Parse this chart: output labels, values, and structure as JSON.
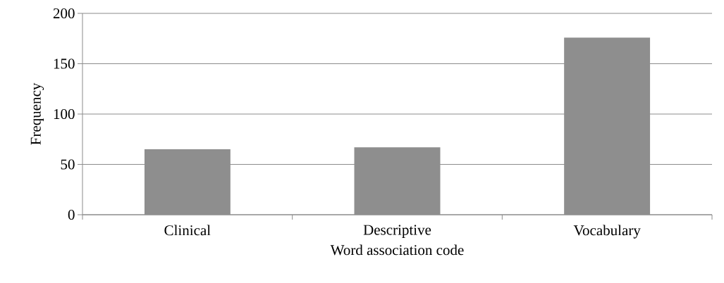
{
  "chart_data": {
    "type": "bar",
    "xlabel": "Word association code",
    "ylabel": "Frequency",
    "categories": [
      "Clinical",
      "Descriptive",
      "Vocabulary"
    ],
    "values": [
      65,
      67,
      176
    ],
    "color": "#8e8e8e",
    "ylim": [
      0,
      200
    ],
    "yticks": [
      0,
      50,
      100,
      150,
      200
    ],
    "grid": "y"
  }
}
